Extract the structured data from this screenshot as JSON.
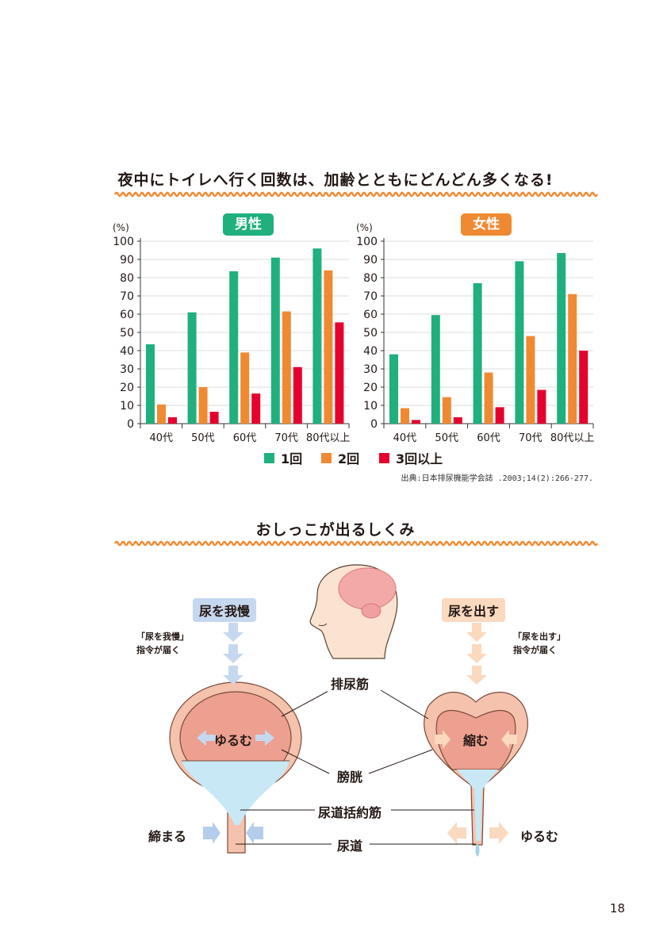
{
  "heading1": "夜中にトイレへ行く回数は、加齢とともにどんどん多くなる!",
  "heading2": "おしっこが出るしくみ",
  "colors": {
    "series1": "#1fb07d",
    "series2": "#ef8a33",
    "series3": "#e6002d",
    "accent": "#ef8a33"
  },
  "chart_data": [
    {
      "type": "bar",
      "title": "男性",
      "ylabel": "(%)",
      "ylim": [
        0,
        100
      ],
      "yticks": [
        "0",
        "10",
        "20",
        "30",
        "40",
        "50",
        "60",
        "70",
        "80",
        "90",
        "100"
      ],
      "grid": true,
      "categories": [
        "40代",
        "50代",
        "60代",
        "70代",
        "80代以上"
      ],
      "series": [
        {
          "name": "1回",
          "values": [
            43.5,
            61,
            83.5,
            91,
            96
          ]
        },
        {
          "name": "2回",
          "values": [
            10.5,
            20,
            39,
            61.5,
            84
          ]
        },
        {
          "name": "3回以上",
          "values": [
            3.5,
            6.5,
            16.5,
            31,
            55.5
          ]
        }
      ]
    },
    {
      "type": "bar",
      "title": "女性",
      "ylabel": "(%)",
      "ylim": [
        0,
        100
      ],
      "yticks": [
        "0",
        "10",
        "20",
        "30",
        "40",
        "50",
        "60",
        "70",
        "80",
        "90",
        "100"
      ],
      "grid": true,
      "categories": [
        "40代",
        "50代",
        "60代",
        "70代",
        "80代以上"
      ],
      "series": [
        {
          "name": "1回",
          "values": [
            38,
            59.5,
            77,
            89,
            93.5
          ]
        },
        {
          "name": "2回",
          "values": [
            8.5,
            14.5,
            28,
            48,
            71
          ]
        },
        {
          "name": "3回以上",
          "values": [
            2,
            3.5,
            9,
            18.5,
            40
          ]
        }
      ]
    }
  ],
  "legend": [
    "1回",
    "2回",
    "3回以上"
  ],
  "source": "出典:日本排尿機能学会誌 .2003;14(2):266-277.",
  "diagram": {
    "left_tag": "尿を我慢",
    "left_note": [
      "「尿を我慢」",
      "指令が届く"
    ],
    "right_tag": "尿を出す",
    "right_note": [
      "「尿を出す」",
      "指令が届く"
    ],
    "detrusor": "排尿筋",
    "bladder": "膀胱",
    "sphincter": "尿道括約筋",
    "urethra": "尿道",
    "left_inner": "ゆるむ",
    "right_inner": "縮む",
    "left_outer": "締まる",
    "right_outer": "ゆるむ"
  },
  "page_number": "18"
}
